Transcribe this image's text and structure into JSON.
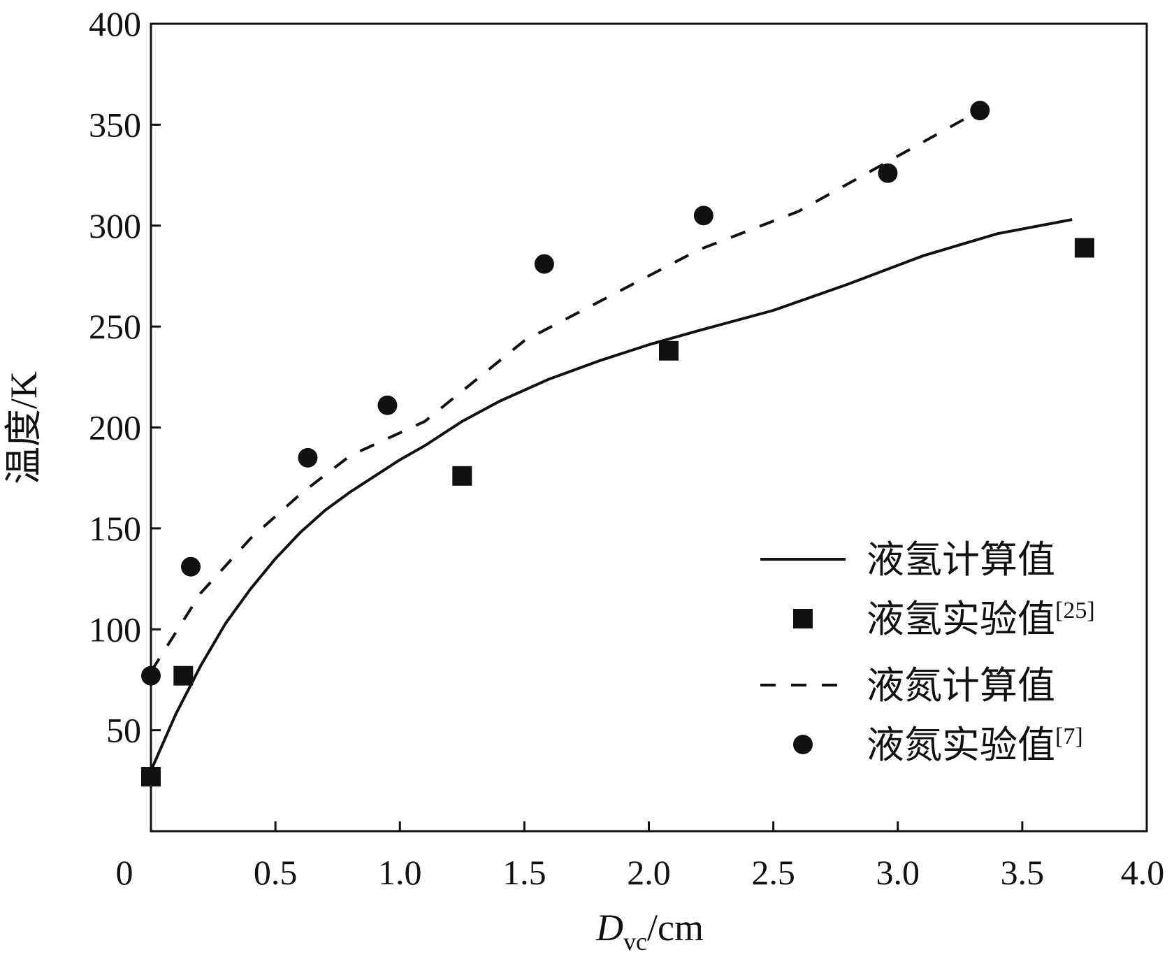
{
  "chart_data": {
    "type": "line",
    "title": "",
    "xlabel": {
      "main": "D",
      "sub": "vc",
      "unit": "/cm"
    },
    "ylabel": "温度/K",
    "xlim": [
      0,
      4.0
    ],
    "ylim": [
      0,
      400
    ],
    "x_ticks": [
      0,
      0.5,
      1.0,
      1.5,
      2.0,
      2.5,
      3.0,
      3.5,
      4.0
    ],
    "x_tick_labels": [
      "0",
      "0.5",
      "1.0",
      "1.5",
      "2.0",
      "2.5",
      "3.0",
      "3.5",
      "4.0"
    ],
    "y_ticks": [
      50,
      100,
      150,
      200,
      250,
      300,
      350,
      400
    ],
    "y_tick_labels": [
      "50",
      "100",
      "150",
      "200",
      "250",
      "300",
      "350",
      "400"
    ],
    "grid": false,
    "legend_position": "bottom-right",
    "series": [
      {
        "name": "液氢计算值",
        "kind": "line",
        "style": "solid",
        "color": "#111111",
        "x": [
          0,
          0.1,
          0.2,
          0.3,
          0.4,
          0.5,
          0.6,
          0.7,
          0.8,
          0.9,
          1.0,
          1.1,
          1.25,
          1.4,
          1.6,
          1.8,
          2.0,
          2.2,
          2.5,
          2.8,
          3.1,
          3.4,
          3.7
        ],
        "y": [
          30,
          58,
          82,
          103,
          120,
          135,
          148,
          159,
          168,
          176,
          184,
          191,
          203,
          213,
          224,
          233,
          241,
          248,
          258,
          271,
          285,
          296,
          303
        ]
      },
      {
        "name": "液氢实验值",
        "name_sup": "[25]",
        "kind": "scatter",
        "marker": "square",
        "color": "#111111",
        "x": [
          0,
          0.13,
          1.25,
          2.08,
          3.75
        ],
        "y": [
          27,
          77,
          176,
          238,
          289
        ]
      },
      {
        "name": "液氮计算值",
        "kind": "line",
        "style": "dashed",
        "color": "#111111",
        "x": [
          0,
          0.2,
          0.4,
          0.6,
          0.8,
          1.1,
          1.5,
          2.2,
          2.6,
          3.3
        ],
        "y": [
          79,
          118,
          145,
          167,
          186,
          203,
          243,
          288,
          307,
          355
        ]
      },
      {
        "name": "液氮实验值",
        "name_sup": "[7]",
        "kind": "scatter",
        "marker": "circle",
        "color": "#111111",
        "x": [
          0,
          0.16,
          0.63,
          0.95,
          1.58,
          2.22,
          2.96,
          3.33
        ],
        "y": [
          77,
          131,
          185,
          211,
          281,
          305,
          326,
          357
        ]
      }
    ]
  }
}
